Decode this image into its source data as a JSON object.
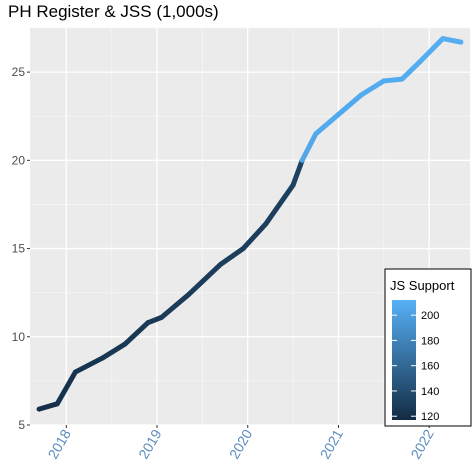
{
  "chart_data": {
    "type": "line",
    "title": "PH Register & JSS (1,000s)",
    "xlabel": "",
    "ylabel": "",
    "x_ticks": [
      "2018",
      "2019",
      "2020",
      "2021",
      "2022"
    ],
    "y_ticks": [
      "5",
      "10",
      "15",
      "20",
      "25"
    ],
    "xlim": [
      2017.6,
      2022.45
    ],
    "ylim": [
      5,
      27.5
    ],
    "grid": true,
    "legend_position": "bottom-right",
    "colors": {
      "low": "#132b43",
      "high": "#56b1f7",
      "panel": "#ebebeb",
      "grid": "#ffffff",
      "x_tick_label": "#5b8bbf"
    },
    "series": [
      {
        "x": [
          2017.7,
          2017.9,
          2018.1,
          2018.4,
          2018.65,
          2018.9,
          2019.05,
          2019.35,
          2019.7,
          2019.95,
          2020.2,
          2020.5,
          2020.6,
          2020.75,
          2021.0,
          2021.25,
          2021.5,
          2021.7,
          2021.9,
          2022.15,
          2022.35
        ],
        "y": [
          5.9,
          6.2,
          8.0,
          8.8,
          9.6,
          10.8,
          11.1,
          12.4,
          14.1,
          15.0,
          16.4,
          18.6,
          20.0,
          21.5,
          22.6,
          23.7,
          24.5,
          24.6,
          25.6,
          26.9,
          26.7
        ],
        "color_value": [
          120,
          122,
          124,
          125,
          126,
          127,
          128,
          129,
          130,
          130,
          131,
          133,
          205,
          207,
          207,
          208,
          208,
          209,
          209,
          210,
          210
        ]
      }
    ],
    "legend": {
      "title": "JS Support",
      "labels": [
        "200",
        "180",
        "160",
        "140",
        "120"
      ],
      "values": [
        200,
        180,
        160,
        140,
        120
      ],
      "min": 117,
      "max": 212
    }
  }
}
